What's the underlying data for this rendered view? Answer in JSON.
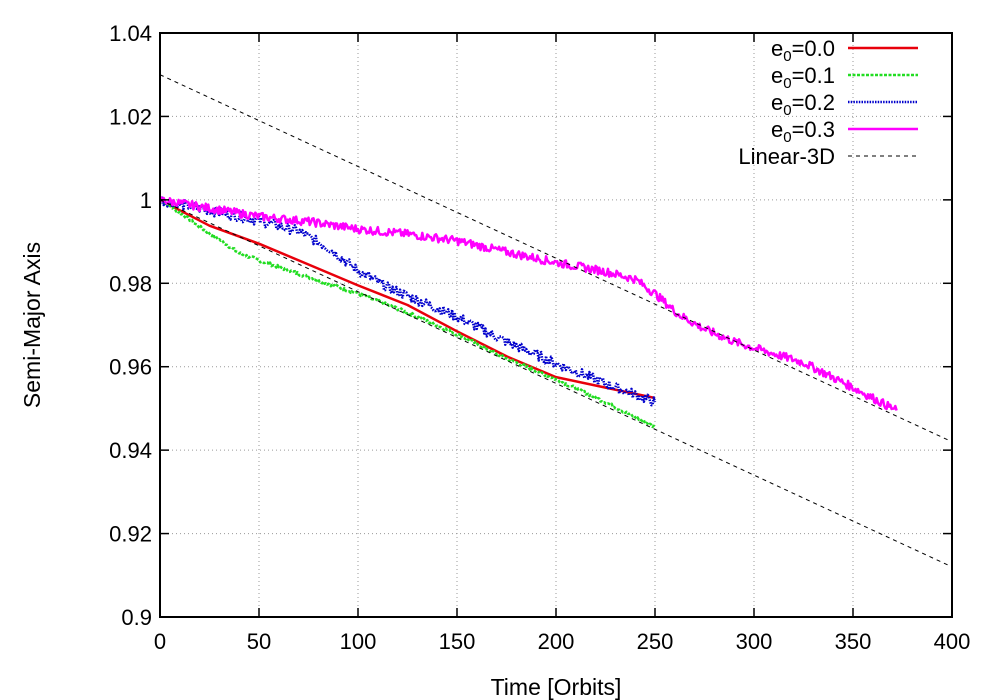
{
  "chart_data": {
    "type": "line",
    "xlabel": "Time [Orbits]",
    "ylabel": "Semi-Major Axis",
    "xlim": [
      0,
      400
    ],
    "ylim": [
      0.9,
      1.04
    ],
    "xticks": [
      "0",
      "50",
      "100",
      "150",
      "200",
      "250",
      "300",
      "350",
      "400"
    ],
    "yticks": [
      "0.9",
      "0.92",
      "0.94",
      "0.96",
      "0.98",
      "1",
      "1.02",
      "1.04"
    ],
    "xtick_values": [
      0,
      50,
      100,
      150,
      200,
      250,
      300,
      350,
      400
    ],
    "ytick_values": [
      0.9,
      0.92,
      0.94,
      0.96,
      0.98,
      1.0,
      1.02,
      1.04
    ],
    "grid": true,
    "legend_position": "top-right",
    "series": [
      {
        "name": "e0=0.0",
        "legend_main": "e",
        "legend_sub": "0",
        "legend_rest": "=0.0",
        "color": "#e8000b",
        "style": "solid",
        "noise": 0,
        "x": [
          0,
          10,
          25,
          50,
          75,
          100,
          125,
          150,
          175,
          200,
          225,
          250
        ],
        "y": [
          1.0,
          0.9975,
          0.9938,
          0.9895,
          0.9845,
          0.9795,
          0.9748,
          0.9685,
          0.9625,
          0.9575,
          0.955,
          0.9525
        ]
      },
      {
        "name": "e0=0.1",
        "legend_main": "e",
        "legend_sub": "0",
        "legend_rest": "=0.1",
        "color": "#22dd22",
        "style": "dashed",
        "noise": 0.0004,
        "x": [
          0,
          5,
          10,
          20,
          30,
          40,
          50,
          75,
          100,
          125,
          150,
          175,
          200,
          225,
          250
        ],
        "y": [
          1.0,
          0.9985,
          0.997,
          0.9935,
          0.9905,
          0.9872,
          0.9855,
          0.9815,
          0.9775,
          0.973,
          0.9678,
          0.962,
          0.957,
          0.9515,
          0.9455
        ]
      },
      {
        "name": "e0=0.2",
        "legend_main": "e",
        "legend_sub": "0",
        "legend_rest": "=0.2",
        "color": "#0000cc",
        "style": "dotted",
        "noise": 0.0012,
        "x": [
          0,
          25,
          50,
          70,
          85,
          100,
          115,
          130,
          150,
          175,
          200,
          225,
          250
        ],
        "y": [
          1.0,
          0.9975,
          0.995,
          0.9925,
          0.9885,
          0.983,
          0.979,
          0.976,
          0.972,
          0.966,
          0.9608,
          0.956,
          0.9515
        ]
      },
      {
        "name": "e0=0.3",
        "legend_main": "e",
        "legend_sub": "0",
        "legend_rest": "=0.3",
        "color": "#ff00ff",
        "style": "solid",
        "noise": 0.001,
        "x": [
          0,
          25,
          50,
          75,
          100,
          125,
          150,
          175,
          200,
          225,
          240,
          250,
          262,
          275,
          290,
          300,
          325,
          350,
          372
        ],
        "y": [
          1.0,
          0.998,
          0.996,
          0.9948,
          0.993,
          0.9918,
          0.9902,
          0.9875,
          0.985,
          0.9828,
          0.981,
          0.9775,
          0.9725,
          0.969,
          0.966,
          0.9645,
          0.961,
          0.955,
          0.9495
        ]
      },
      {
        "name": "Linear-3D",
        "legend_main": "Linear-3D",
        "legend_sub": "",
        "legend_rest": "",
        "color": "#000000",
        "style": "dashed-thin",
        "noise": 0,
        "x": [
          0,
          400
        ],
        "y": [
          1.0,
          0.912
        ]
      },
      {
        "name": "Linear-3D",
        "legend_main": "",
        "legend_sub": "",
        "legend_rest": "",
        "color": "#000000",
        "style": "dashed-thin",
        "noise": 0,
        "x": [
          0,
          400
        ],
        "y": [
          1.03,
          0.942
        ]
      }
    ]
  }
}
